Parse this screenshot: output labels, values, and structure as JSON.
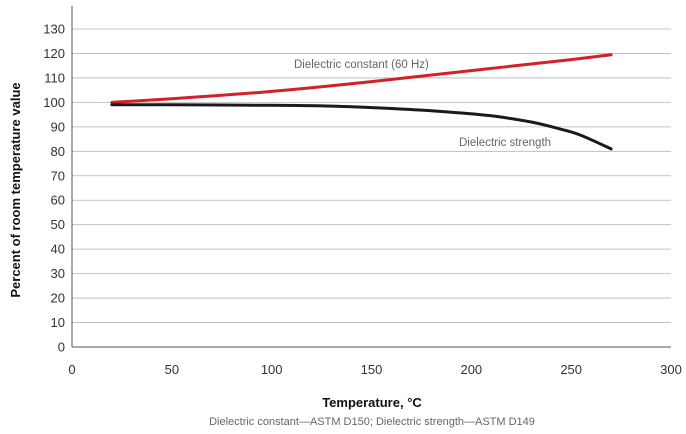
{
  "chart_data": {
    "type": "line",
    "title": "",
    "xlabel": "Temperature, °C",
    "ylabel": "Percent of room temperature value",
    "footnote": "Dielectric constant—ASTM D150; Dielectric strength—ASTM D149",
    "xlim": [
      0,
      300
    ],
    "ylim": [
      0,
      135
    ],
    "xticks": [
      0,
      50,
      100,
      150,
      200,
      250,
      300
    ],
    "yticks": [
      0,
      10,
      20,
      30,
      40,
      50,
      60,
      70,
      80,
      90,
      100,
      110,
      120,
      130
    ],
    "grid": "horizontal",
    "series": [
      {
        "name": "Dielectric constant (60 Hz)",
        "color": "#d42027",
        "x": [
          20,
          50,
          100,
          150,
          200,
          250,
          270
        ],
        "y": [
          100,
          101.5,
          104.5,
          108.5,
          113,
          117.5,
          119.5
        ]
      },
      {
        "name": "Dielectric strength",
        "color": "#1a1a1a",
        "x": [
          20,
          50,
          100,
          130,
          160,
          190,
          210,
          230,
          245,
          255,
          270
        ],
        "y": [
          99,
          99,
          98.8,
          98.5,
          97.5,
          96,
          94.5,
          92,
          89,
          86.5,
          81
        ]
      }
    ]
  }
}
